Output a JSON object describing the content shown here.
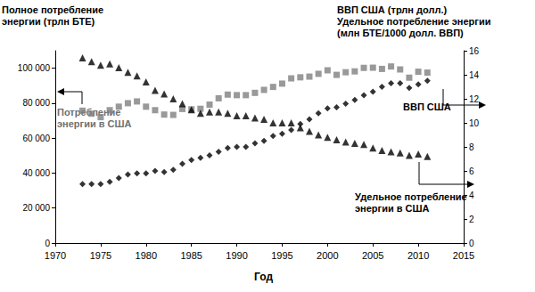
{
  "chart_data": {
    "type": "scatter",
    "y_label": "Полное потребление\nэнергии (трлн БТЕ)",
    "y2_label": "ВВП США (трлн долл.)\nУдельное потребление энергии\n(млн БТЕ/1000 долл. ВВП)",
    "x_label": "Год",
    "x": [
      1973,
      1974,
      1975,
      1976,
      1977,
      1978,
      1979,
      1980,
      1981,
      1982,
      1983,
      1984,
      1985,
      1986,
      1987,
      1988,
      1989,
      1990,
      1991,
      1992,
      1993,
      1994,
      1995,
      1996,
      1997,
      1998,
      1999,
      2000,
      2001,
      2002,
      2003,
      2004,
      2005,
      2006,
      2007,
      2008,
      2009,
      2010,
      2011
    ],
    "xlim": [
      1970,
      2015
    ],
    "xticks": [
      1970,
      1975,
      1980,
      1985,
      1990,
      1995,
      2000,
      2005,
      2010,
      2015
    ],
    "ylim": [
      0,
      110000
    ],
    "yticks": [
      0,
      {
        "value": 20000,
        "label": "20 000"
      },
      {
        "value": 40000,
        "label": "40 000"
      },
      {
        "value": 60000,
        "label": "60 000"
      },
      {
        "value": 80000,
        "label": "80 000"
      },
      {
        "value": 100000,
        "label": "100 000"
      }
    ],
    "y2lim": [
      0,
      16
    ],
    "y2ticks": [
      0,
      2,
      4,
      6,
      8,
      10,
      12,
      14,
      16
    ],
    "grid": false,
    "series": [
      {
        "name": "Потребление\nэнергии в США",
        "color": "#808080",
        "marker": "square",
        "values": [
          75700,
          74000,
          72000,
          76000,
          78000,
          80000,
          81000,
          78000,
          76000,
          73500,
          73300,
          76700,
          76500,
          76800,
          79200,
          82800,
          84900,
          84600,
          84600,
          85900,
          87600,
          89300,
          91200,
          94200,
          94800,
          95200,
          96800,
          98800,
          96200,
          97700,
          98200,
          100200,
          100300,
          99600,
          101000,
          99300,
          94600,
          98000,
          97500
        ]
      },
      {
        "name": "ВВП США",
        "color": "#000000",
        "marker": "diamond",
        "axis": "y2",
        "values": [
          4.9,
          4.9,
          4.9,
          5.1,
          5.4,
          5.7,
          5.8,
          5.8,
          6.0,
          5.9,
          6.1,
          6.6,
          6.9,
          7.1,
          7.3,
          7.6,
          7.9,
          8.0,
          8.0,
          8.3,
          8.5,
          8.9,
          9.1,
          9.4,
          9.9,
          10.3,
          10.8,
          11.2,
          11.3,
          11.6,
          11.9,
          12.3,
          12.6,
          13.0,
          13.3,
          13.3,
          12.9,
          13.2,
          13.5
        ]
      },
      {
        "name": "Удельное потребление\nэнергии в США",
        "color": "#000000",
        "marker": "triangle",
        "axis": "y2",
        "values": [
          15.4,
          15.1,
          14.8,
          14.9,
          14.6,
          14.2,
          13.9,
          13.4,
          12.7,
          12.4,
          12.0,
          11.6,
          11.1,
          10.8,
          10.9,
          10.9,
          10.8,
          10.6,
          10.6,
          10.4,
          10.3,
          10.0,
          10.0,
          10.0,
          9.6,
          9.3,
          9.0,
          8.8,
          8.6,
          8.4,
          8.3,
          8.2,
          7.9,
          7.7,
          7.6,
          7.5,
          7.3,
          7.4,
          7.2
        ]
      }
    ]
  }
}
